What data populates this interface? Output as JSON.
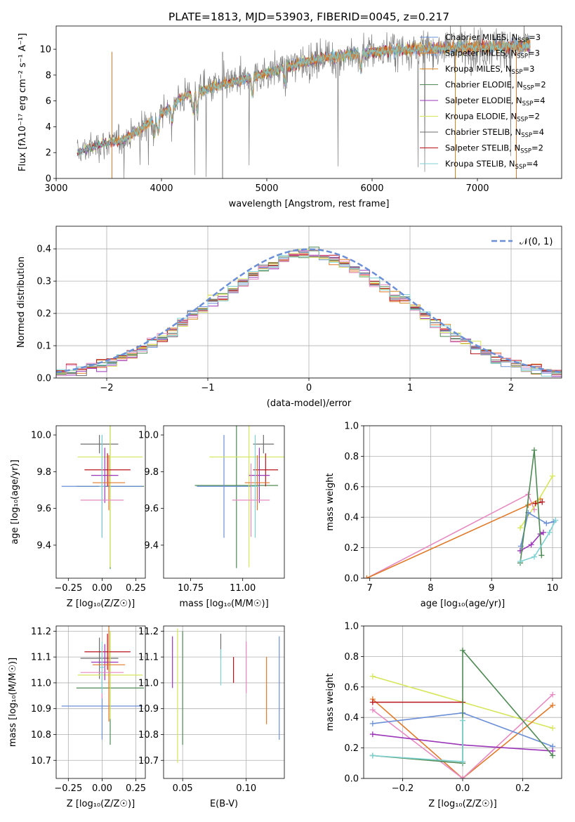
{
  "figure": {
    "title": "PLATE=1813, MJD=53903, FIBERID=0045, z=0.217"
  },
  "colors": {
    "Chabrier MILES": "#6b8fd6",
    "Salpeter MILES": "#e07a2a",
    "Kroupa MILES": "#d4851d",
    "Chabrier ELODIE": "#4f8a55",
    "Salpeter ELODIE": "#9b36b8",
    "Kroupa ELODIE": "#d6e65a",
    "Chabrier STELIB": "#6e6e6e",
    "Salpeter STELIB": "#b8121c",
    "Kroupa STELIB": "#7fd1d1",
    "gaussian": "#6b8fd6",
    "pink": "#e68ac2"
  },
  "chart_data": [
    {
      "id": "spectrum",
      "type": "line",
      "title": "PLATE=1813, MJD=53903, FIBERID=0045, z=0.217",
      "xlabel": "wavelength [Angstrom, rest frame]",
      "ylabel": "Flux [fλ10⁻¹⁷ erg cm⁻² s⁻¹ A⁻¹]",
      "xlim": [
        3000,
        7800
      ],
      "ylim": [
        0,
        11.8
      ],
      "xticks": [
        "3000",
        "4000",
        "5000",
        "6000",
        "7000"
      ],
      "yticks": [
        "0",
        "2",
        "4",
        "6",
        "8",
        "10"
      ],
      "legend_placement": "top-right",
      "legend": [
        {
          "label": "Chabrier MILES, N",
          "sub": "SSP",
          "suffix": "=3",
          "color": "#6b8fd6"
        },
        {
          "label": "Salpeter MILES, N",
          "sub": "SSP",
          "suffix": "=3",
          "color": "#e07a2a"
        },
        {
          "label": "Kroupa MILES, N",
          "sub": "SSP",
          "suffix": "=3",
          "color": "#d4851d"
        },
        {
          "label": "Chabrier ELODIE, N",
          "sub": "SSP",
          "suffix": "=2",
          "color": "#4f8a55"
        },
        {
          "label": "Salpeter ELODIE, N",
          "sub": "SSP",
          "suffix": "=4",
          "color": "#9b36b8"
        },
        {
          "label": "Kroupa ELODIE, N",
          "sub": "SSP",
          "suffix": "=2",
          "color": "#d6e65a"
        },
        {
          "label": "Chabrier STELIB, N",
          "sub": "SSP",
          "suffix": "=4",
          "color": "#6e6e6e"
        },
        {
          "label": "Salpeter STELIB, N",
          "sub": "SSP",
          "suffix": "=2",
          "color": "#b8121c"
        },
        {
          "label": "Kroupa STELIB, N",
          "sub": "SSP",
          "suffix": "=4",
          "color": "#7fd1d1"
        }
      ],
      "continuum": {
        "x": [
          3200,
          3400,
          3600,
          3800,
          4000,
          4200,
          4500,
          4800,
          5000,
          5300,
          5600,
          6000,
          6400,
          6800,
          7200,
          7500
        ],
        "y": [
          2.0,
          2.6,
          2.9,
          3.8,
          5.0,
          6.3,
          7.1,
          7.7,
          8.2,
          8.9,
          9.4,
          9.8,
          10.0,
          10.1,
          10.2,
          10.3
        ]
      }
    },
    {
      "id": "residuals",
      "type": "bar",
      "xlabel": "(data-model)/error",
      "ylabel": "Normed distribution",
      "xlim": [
        -2.5,
        2.5
      ],
      "ylim": [
        0,
        0.47
      ],
      "xticks": [
        "−2",
        "−1",
        "0",
        "1",
        "2"
      ],
      "yticks": [
        "0.0",
        "0.1",
        "0.2",
        "0.3",
        "0.4"
      ],
      "legend_placement": "top-right",
      "legend": [
        {
          "label": "𝒩(0, 1)",
          "color": "#6b8fd6"
        }
      ],
      "bin_width": 0.1,
      "bins_from": -2.5
    },
    {
      "id": "age_vs_Z",
      "type": "scatter",
      "xlabel": "Z [log₁₀(Z/Z☉)]",
      "ylabel": "age  [log₁₀(age/yr)]",
      "xlim": [
        -0.34,
        0.32
      ],
      "ylim": [
        9.22,
        10.05
      ],
      "xticks": [
        "−0.25",
        "0.00",
        "0.25"
      ],
      "yticks": [
        "9.4",
        "9.6",
        "9.8",
        "10.0"
      ],
      "points": [
        {
          "x": -0.02,
          "y": 9.95,
          "xerr": 0.14,
          "yerr": 0.05,
          "color": "#6e6e6e"
        },
        {
          "x": 0.06,
          "y": 9.72,
          "xerr": 0.25,
          "yerr": 0.45,
          "color": "#4f8a55"
        },
        {
          "x": 0.0,
          "y": 9.72,
          "xerr": 0.3,
          "yerr": 0.28,
          "color": "#6b8fd6"
        },
        {
          "x": 0.06,
          "y": 9.88,
          "xerr": 0.24,
          "yerr": 0.6,
          "color": "#d6e65a"
        },
        {
          "x": 0.04,
          "y": 9.81,
          "xerr": 0.17,
          "yerr": 0.09,
          "color": "#b8121c"
        },
        {
          "x": 0.02,
          "y": 9.78,
          "xerr": 0.1,
          "yerr": 0.15,
          "color": "#9b36b8"
        },
        {
          "x": 0.05,
          "y": 9.74,
          "xerr": 0.12,
          "yerr": 0.15,
          "color": "#e07a2a"
        },
        {
          "x": 0.0,
          "y": 9.645,
          "xerr": 0.16,
          "yerr": 0.2,
          "color": "#e68ac2"
        },
        {
          "x": 0.0,
          "y": 9.72,
          "xerr": 0.02,
          "yerr": 0.28,
          "color": "#7fd1d1"
        }
      ]
    },
    {
      "id": "age_vs_mass",
      "type": "scatter",
      "xlabel": "mass [log₁₀(M/M☉)]",
      "ylabel": "",
      "xlim": [
        10.62,
        11.2
      ],
      "ylim": [
        9.22,
        10.05
      ],
      "xticks": [
        "10.75",
        "11.00"
      ],
      "yticks": [
        "9.4",
        "9.6",
        "9.8",
        "10.0"
      ],
      "points": [
        {
          "x": 11.1,
          "y": 9.95,
          "xerr": 0.05,
          "yerr": 0.05,
          "color": "#6e6e6e"
        },
        {
          "x": 10.97,
          "y": 9.725,
          "xerr": 0.2,
          "yerr": 0.45,
          "color": "#4f8a55"
        },
        {
          "x": 10.91,
          "y": 9.72,
          "xerr": 0.13,
          "yerr": 0.28,
          "color": "#6b8fd6"
        },
        {
          "x": 11.03,
          "y": 9.88,
          "xerr": 0.19,
          "yerr": 0.6,
          "color": "#d6e65a"
        },
        {
          "x": 11.11,
          "y": 9.81,
          "xerr": 0.06,
          "yerr": 0.09,
          "color": "#b8121c"
        },
        {
          "x": 11.08,
          "y": 9.78,
          "xerr": 0.05,
          "yerr": 0.15,
          "color": "#9b36b8"
        },
        {
          "x": 11.07,
          "y": 9.74,
          "xerr": 0.06,
          "yerr": 0.15,
          "color": "#e07a2a"
        },
        {
          "x": 11.04,
          "y": 9.645,
          "xerr": 0.09,
          "yerr": 0.2,
          "color": "#e68ac2"
        },
        {
          "x": 11.06,
          "y": 9.72,
          "xerr": 0.02,
          "yerr": 0.28,
          "color": "#7fd1d1"
        }
      ]
    },
    {
      "id": "weight_vs_age",
      "type": "line",
      "xlabel": "age  [log₁₀(age/yr)]",
      "ylabel": "mass weight",
      "xlim": [
        6.9,
        10.15
      ],
      "ylim": [
        0,
        1.0
      ],
      "xticks": [
        "7",
        "8",
        "9",
        "10"
      ],
      "yticks": [
        "0.0",
        "0.2",
        "0.4",
        "0.6",
        "0.8",
        "1.0"
      ],
      "series": [
        {
          "color": "#e68ac2",
          "x": [
            6.95,
            9.6,
            9.7
          ],
          "y": [
            0.0,
            0.55,
            0.45
          ]
        },
        {
          "color": "#e07a2a",
          "x": [
            6.95,
            9.6,
            9.8
          ],
          "y": [
            0.0,
            0.48,
            0.52
          ]
        },
        {
          "color": "#d6e65a",
          "x": [
            9.47,
            9.75,
            10.0
          ],
          "y": [
            0.33,
            0.5,
            0.67
          ]
        },
        {
          "color": "#b8121c",
          "x": [
            9.72,
            9.83
          ],
          "y": [
            0.49,
            0.5
          ]
        },
        {
          "color": "#9b36b8",
          "x": [
            9.47,
            9.65,
            9.8,
            9.85
          ],
          "y": [
            0.18,
            0.22,
            0.29,
            0.3
          ]
        },
        {
          "color": "#6b8fd6",
          "x": [
            9.48,
            9.6,
            9.9,
            10.02
          ],
          "y": [
            0.21,
            0.43,
            0.36,
            0.37
          ]
        },
        {
          "color": "#4f8a55",
          "x": [
            9.47,
            9.7,
            9.82
          ],
          "y": [
            0.1,
            0.84,
            0.15
          ]
        },
        {
          "color": "#7fd1d1",
          "x": [
            9.47,
            9.7,
            9.95,
            10.05
          ],
          "y": [
            0.11,
            0.14,
            0.3,
            0.38
          ]
        }
      ]
    },
    {
      "id": "mass_vs_Z",
      "type": "scatter",
      "xlabel": "Z [log₁₀(Z/Z☉)]",
      "ylabel": "mass [log₁₀(M/M☉)]",
      "xlim": [
        -0.34,
        0.32
      ],
      "ylim": [
        10.63,
        11.22
      ],
      "xticks": [
        "−0.25",
        "0.00",
        "0.25"
      ],
      "yticks": [
        "10.7",
        "10.8",
        "10.9",
        "11.0",
        "11.1",
        "11.2"
      ],
      "points": [
        {
          "x": -0.02,
          "y": 11.095,
          "xerr": 0.14,
          "yerr": 0.08,
          "color": "#6e6e6e"
        },
        {
          "x": 0.06,
          "y": 10.98,
          "xerr": 0.25,
          "yerr": 0.22,
          "color": "#4f8a55"
        },
        {
          "x": 0.0,
          "y": 10.91,
          "xerr": 0.3,
          "yerr": 0.13,
          "color": "#6b8fd6"
        },
        {
          "x": 0.06,
          "y": 11.03,
          "xerr": 0.24,
          "yerr": 0.17,
          "color": "#d6e65a"
        },
        {
          "x": 0.04,
          "y": 11.12,
          "xerr": 0.17,
          "yerr": 0.07,
          "color": "#b8121c"
        },
        {
          "x": 0.02,
          "y": 11.08,
          "xerr": 0.1,
          "yerr": 0.07,
          "color": "#9b36b8"
        },
        {
          "x": 0.05,
          "y": 11.07,
          "xerr": 0.12,
          "yerr": 0.22,
          "color": "#e07a2a"
        },
        {
          "x": 0.0,
          "y": 11.04,
          "xerr": 0.16,
          "yerr": 0.1,
          "color": "#e68ac2"
        },
        {
          "x": 0.0,
          "y": 11.06,
          "xerr": 0.02,
          "yerr": 0.1,
          "color": "#7fd1d1"
        }
      ]
    },
    {
      "id": "mass_vs_ebv",
      "type": "scatter",
      "xlabel": "E(B-V)",
      "ylabel": "",
      "xlim": [
        0.035,
        0.13
      ],
      "ylim": [
        10.63,
        11.22
      ],
      "xticks": [
        "0.05",
        "0.10"
      ],
      "yticks": [
        "10.7",
        "10.8",
        "10.9",
        "11.0",
        "11.1",
        "11.2"
      ],
      "points": [
        {
          "x": 0.08,
          "y": 11.14,
          "yerr": 0.05,
          "color": "#6e6e6e"
        },
        {
          "x": 0.05,
          "y": 10.98,
          "yerr": 0.22,
          "color": "#4f8a55"
        },
        {
          "x": 0.126,
          "y": 10.98,
          "yerr": 0.2,
          "color": "#6b8fd6"
        },
        {
          "x": 0.046,
          "y": 10.95,
          "yerr": 0.26,
          "color": "#d6e65a"
        },
        {
          "x": 0.09,
          "y": 11.05,
          "yerr": 0.05,
          "color": "#b8121c"
        },
        {
          "x": 0.042,
          "y": 11.08,
          "yerr": 0.1,
          "color": "#9b36b8"
        },
        {
          "x": 0.116,
          "y": 10.97,
          "yerr": 0.13,
          "color": "#e07a2a"
        },
        {
          "x": 0.1,
          "y": 11.06,
          "yerr": 0.1,
          "color": "#e68ac2"
        },
        {
          "x": 0.08,
          "y": 11.06,
          "yerr": 0.07,
          "color": "#7fd1d1"
        }
      ]
    },
    {
      "id": "weight_vs_Z",
      "type": "line",
      "xlabel": "Z [log₁₀(Z/Z☉)]",
      "ylabel": "mass weight",
      "xlim": [
        -0.33,
        0.33
      ],
      "ylim": [
        0,
        1.0
      ],
      "xticks": [
        "−0.2",
        "0.0",
        "0.2"
      ],
      "yticks": [
        "0.0",
        "0.2",
        "0.4",
        "0.6",
        "0.8",
        "1.0"
      ],
      "series": [
        {
          "color": "#d6e65a",
          "x": [
            -0.3,
            0.3
          ],
          "y": [
            0.67,
            0.33
          ]
        },
        {
          "color": "#e07a2a",
          "x": [
            -0.3,
            0.0,
            0.3
          ],
          "y": [
            0.52,
            0.0,
            0.48
          ]
        },
        {
          "color": "#b8121c",
          "x": [
            -0.3,
            0.0
          ],
          "y": [
            0.5,
            0.5
          ]
        },
        {
          "color": "#e68ac2",
          "x": [
            -0.3,
            0.0,
            0.3
          ],
          "y": [
            0.45,
            0.0,
            0.55
          ]
        },
        {
          "color": "#6b8fd6",
          "x": [
            -0.3,
            0.0,
            0.3
          ],
          "y": [
            0.36,
            0.43,
            0.21
          ]
        },
        {
          "color": "#9b36b8",
          "x": [
            -0.3,
            0.0,
            0.3
          ],
          "y": [
            0.29,
            0.22,
            0.18
          ]
        },
        {
          "color": "#4f8a55",
          "x": [
            -0.3,
            0.0,
            0.0,
            0.3
          ],
          "y": [
            0.15,
            0.1,
            0.84,
            0.15
          ]
        },
        {
          "color": "#7fd1d1",
          "x": [
            -0.3,
            0.0,
            0.0
          ],
          "y": [
            0.15,
            0.11,
            0.38
          ]
        }
      ]
    }
  ]
}
